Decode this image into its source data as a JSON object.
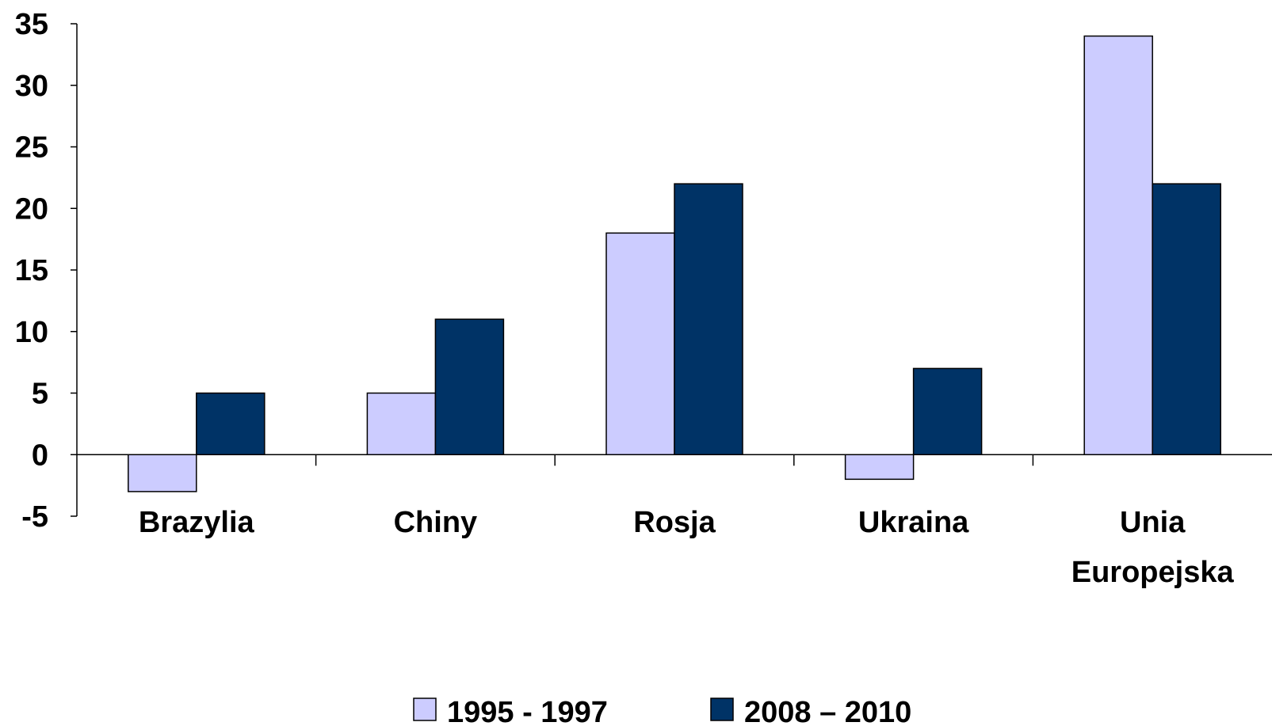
{
  "chart_data": {
    "type": "bar",
    "categories": [
      [
        "Brazylia"
      ],
      [
        "Chiny"
      ],
      [
        "Rosja"
      ],
      [
        "Ukraina"
      ],
      [
        "Unia",
        "Europejska"
      ]
    ],
    "series": [
      {
        "name": "1995 - 1997",
        "values": [
          -3,
          5,
          18,
          -2,
          34
        ],
        "color": "#ccccff"
      },
      {
        "name": "2008 – 2010",
        "values": [
          5,
          11,
          22,
          7,
          22
        ],
        "color": "#003366"
      }
    ],
    "ylim": [
      -5,
      35
    ],
    "yticks": [
      -5,
      0,
      5,
      10,
      15,
      20,
      25,
      30,
      35
    ],
    "grid": false,
    "legend_position": "bottom",
    "title": "",
    "xlabel": "",
    "ylabel": ""
  }
}
